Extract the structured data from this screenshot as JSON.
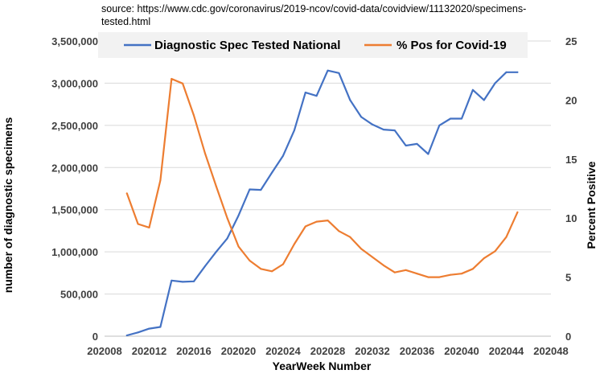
{
  "source_note": {
    "line1": "source:  https://www.cdc.gov/coronavirus/2019-ncov/covid-data/covidview/11132020/specimens-",
    "line2": "tested.html"
  },
  "chart_data": {
    "type": "line",
    "xlabel": "YearWeek Number",
    "ylabel_left": "number of diagnostic specimens",
    "ylabel_right": "Percent Positive",
    "x_ticks": [
      "202008",
      "202012",
      "202016",
      "202020",
      "202024",
      "202028",
      "202032",
      "202036",
      "202040",
      "202044",
      "202048"
    ],
    "xlim": [
      202008,
      202048
    ],
    "ylim_left": [
      0,
      3500000
    ],
    "y_ticks_left": [
      "0",
      "500,000",
      "1,000,000",
      "1,500,000",
      "2,000,000",
      "2,500,000",
      "3,000,000",
      "3,500,000"
    ],
    "ylim_right": [
      0,
      25
    ],
    "y_ticks_right": [
      "0",
      "5",
      "10",
      "15",
      "20",
      "25"
    ],
    "grid": "horizontal",
    "legend_position": "top",
    "x": [
      202010,
      202011,
      202012,
      202013,
      202014,
      202015,
      202016,
      202017,
      202018,
      202019,
      202020,
      202021,
      202022,
      202023,
      202024,
      202025,
      202026,
      202027,
      202028,
      202029,
      202030,
      202031,
      202032,
      202033,
      202034,
      202035,
      202036,
      202037,
      202038,
      202039,
      202040,
      202041,
      202042,
      202043,
      202044,
      202045
    ],
    "series": [
      {
        "name": "Diagnostic Spec Tested National",
        "axis": "left",
        "color": "#4472C4",
        "values": [
          10000,
          45000,
          90000,
          110000,
          660000,
          645000,
          650000,
          830000,
          1000000,
          1160000,
          1430000,
          1740000,
          1735000,
          1940000,
          2140000,
          2440000,
          2890000,
          2850000,
          3150000,
          3120000,
          2800000,
          2600000,
          2510000,
          2450000,
          2440000,
          2260000,
          2280000,
          2160000,
          2500000,
          2580000,
          2580000,
          2920000,
          2800000,
          3000000,
          3130000,
          3130000
        ]
      },
      {
        "name": "% Pos for Covid-19",
        "axis": "right",
        "color": "#ED7D31",
        "values": [
          12.1,
          9.5,
          9.2,
          13.2,
          21.8,
          21.4,
          18.7,
          15.5,
          12.7,
          10.0,
          7.6,
          6.4,
          5.7,
          5.5,
          6.1,
          7.8,
          9.3,
          9.7,
          9.8,
          8.9,
          8.4,
          7.4,
          6.7,
          6.0,
          5.4,
          5.6,
          5.3,
          5.0,
          5.0,
          5.2,
          5.3,
          5.7,
          6.6,
          7.2,
          8.4,
          10.5
        ]
      }
    ]
  }
}
